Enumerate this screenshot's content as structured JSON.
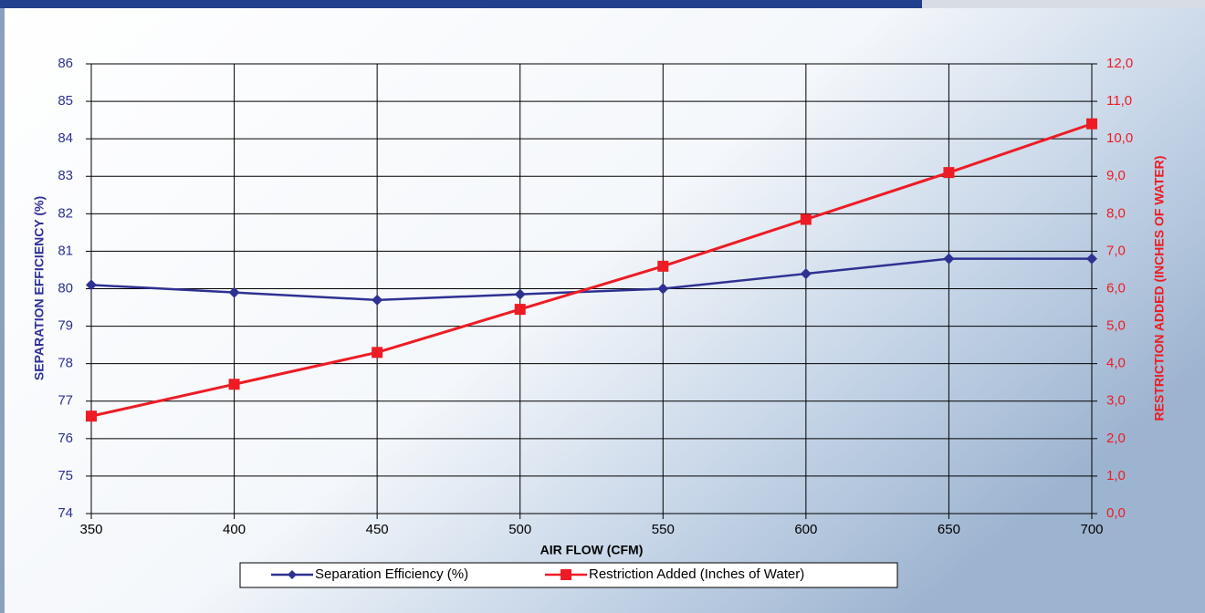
{
  "chart_data": {
    "type": "line",
    "xlabel": "AIR FLOW (CFM)",
    "ylabel": "SEPARATION EFFICIENCY (%)",
    "y2label": "RESTRICTION ADDED (INCHES OF WATER)",
    "x": [
      350,
      400,
      450,
      500,
      550,
      600,
      650,
      700
    ],
    "xlim": [
      350,
      700
    ],
    "xticks": [
      350,
      400,
      450,
      500,
      550,
      600,
      650,
      700
    ],
    "ylim": [
      74,
      86
    ],
    "yticks": [
      74,
      75,
      76,
      77,
      78,
      79,
      80,
      81,
      82,
      83,
      84,
      85,
      86
    ],
    "y2lim": [
      0,
      12
    ],
    "y2ticks": [
      {
        "value": 0,
        "label": "0,0"
      },
      {
        "value": 1,
        "label": "1,0"
      },
      {
        "value": 2,
        "label": "2,0"
      },
      {
        "value": 3,
        "label": "3,0"
      },
      {
        "value": 4,
        "label": "4,0"
      },
      {
        "value": 5,
        "label": "5,0"
      },
      {
        "value": 6,
        "label": "6,0"
      },
      {
        "value": 7,
        "label": "7,0"
      },
      {
        "value": 8,
        "label": "8,0"
      },
      {
        "value": 9,
        "label": "9,0"
      },
      {
        "value": 10,
        "label": "10,0"
      },
      {
        "value": 11,
        "label": "11,0"
      },
      {
        "value": 12,
        "label": "12,0"
      }
    ],
    "grid": true,
    "legend": "bottom",
    "series": [
      {
        "name": "Separation Efficiency (%)",
        "color": "#2e3192",
        "marker": "diamond",
        "values": [
          80.1,
          79.9,
          79.7,
          79.85,
          80.0,
          80.4,
          80.8,
          80.8
        ]
      },
      {
        "name": "Restriction Added (Inches of Water)",
        "color": "#ed1c24",
        "marker": "square",
        "axis": "y2",
        "values": [
          2.6,
          3.45,
          4.3,
          5.45,
          6.6,
          7.85,
          9.1,
          10.4
        ]
      }
    ]
  }
}
